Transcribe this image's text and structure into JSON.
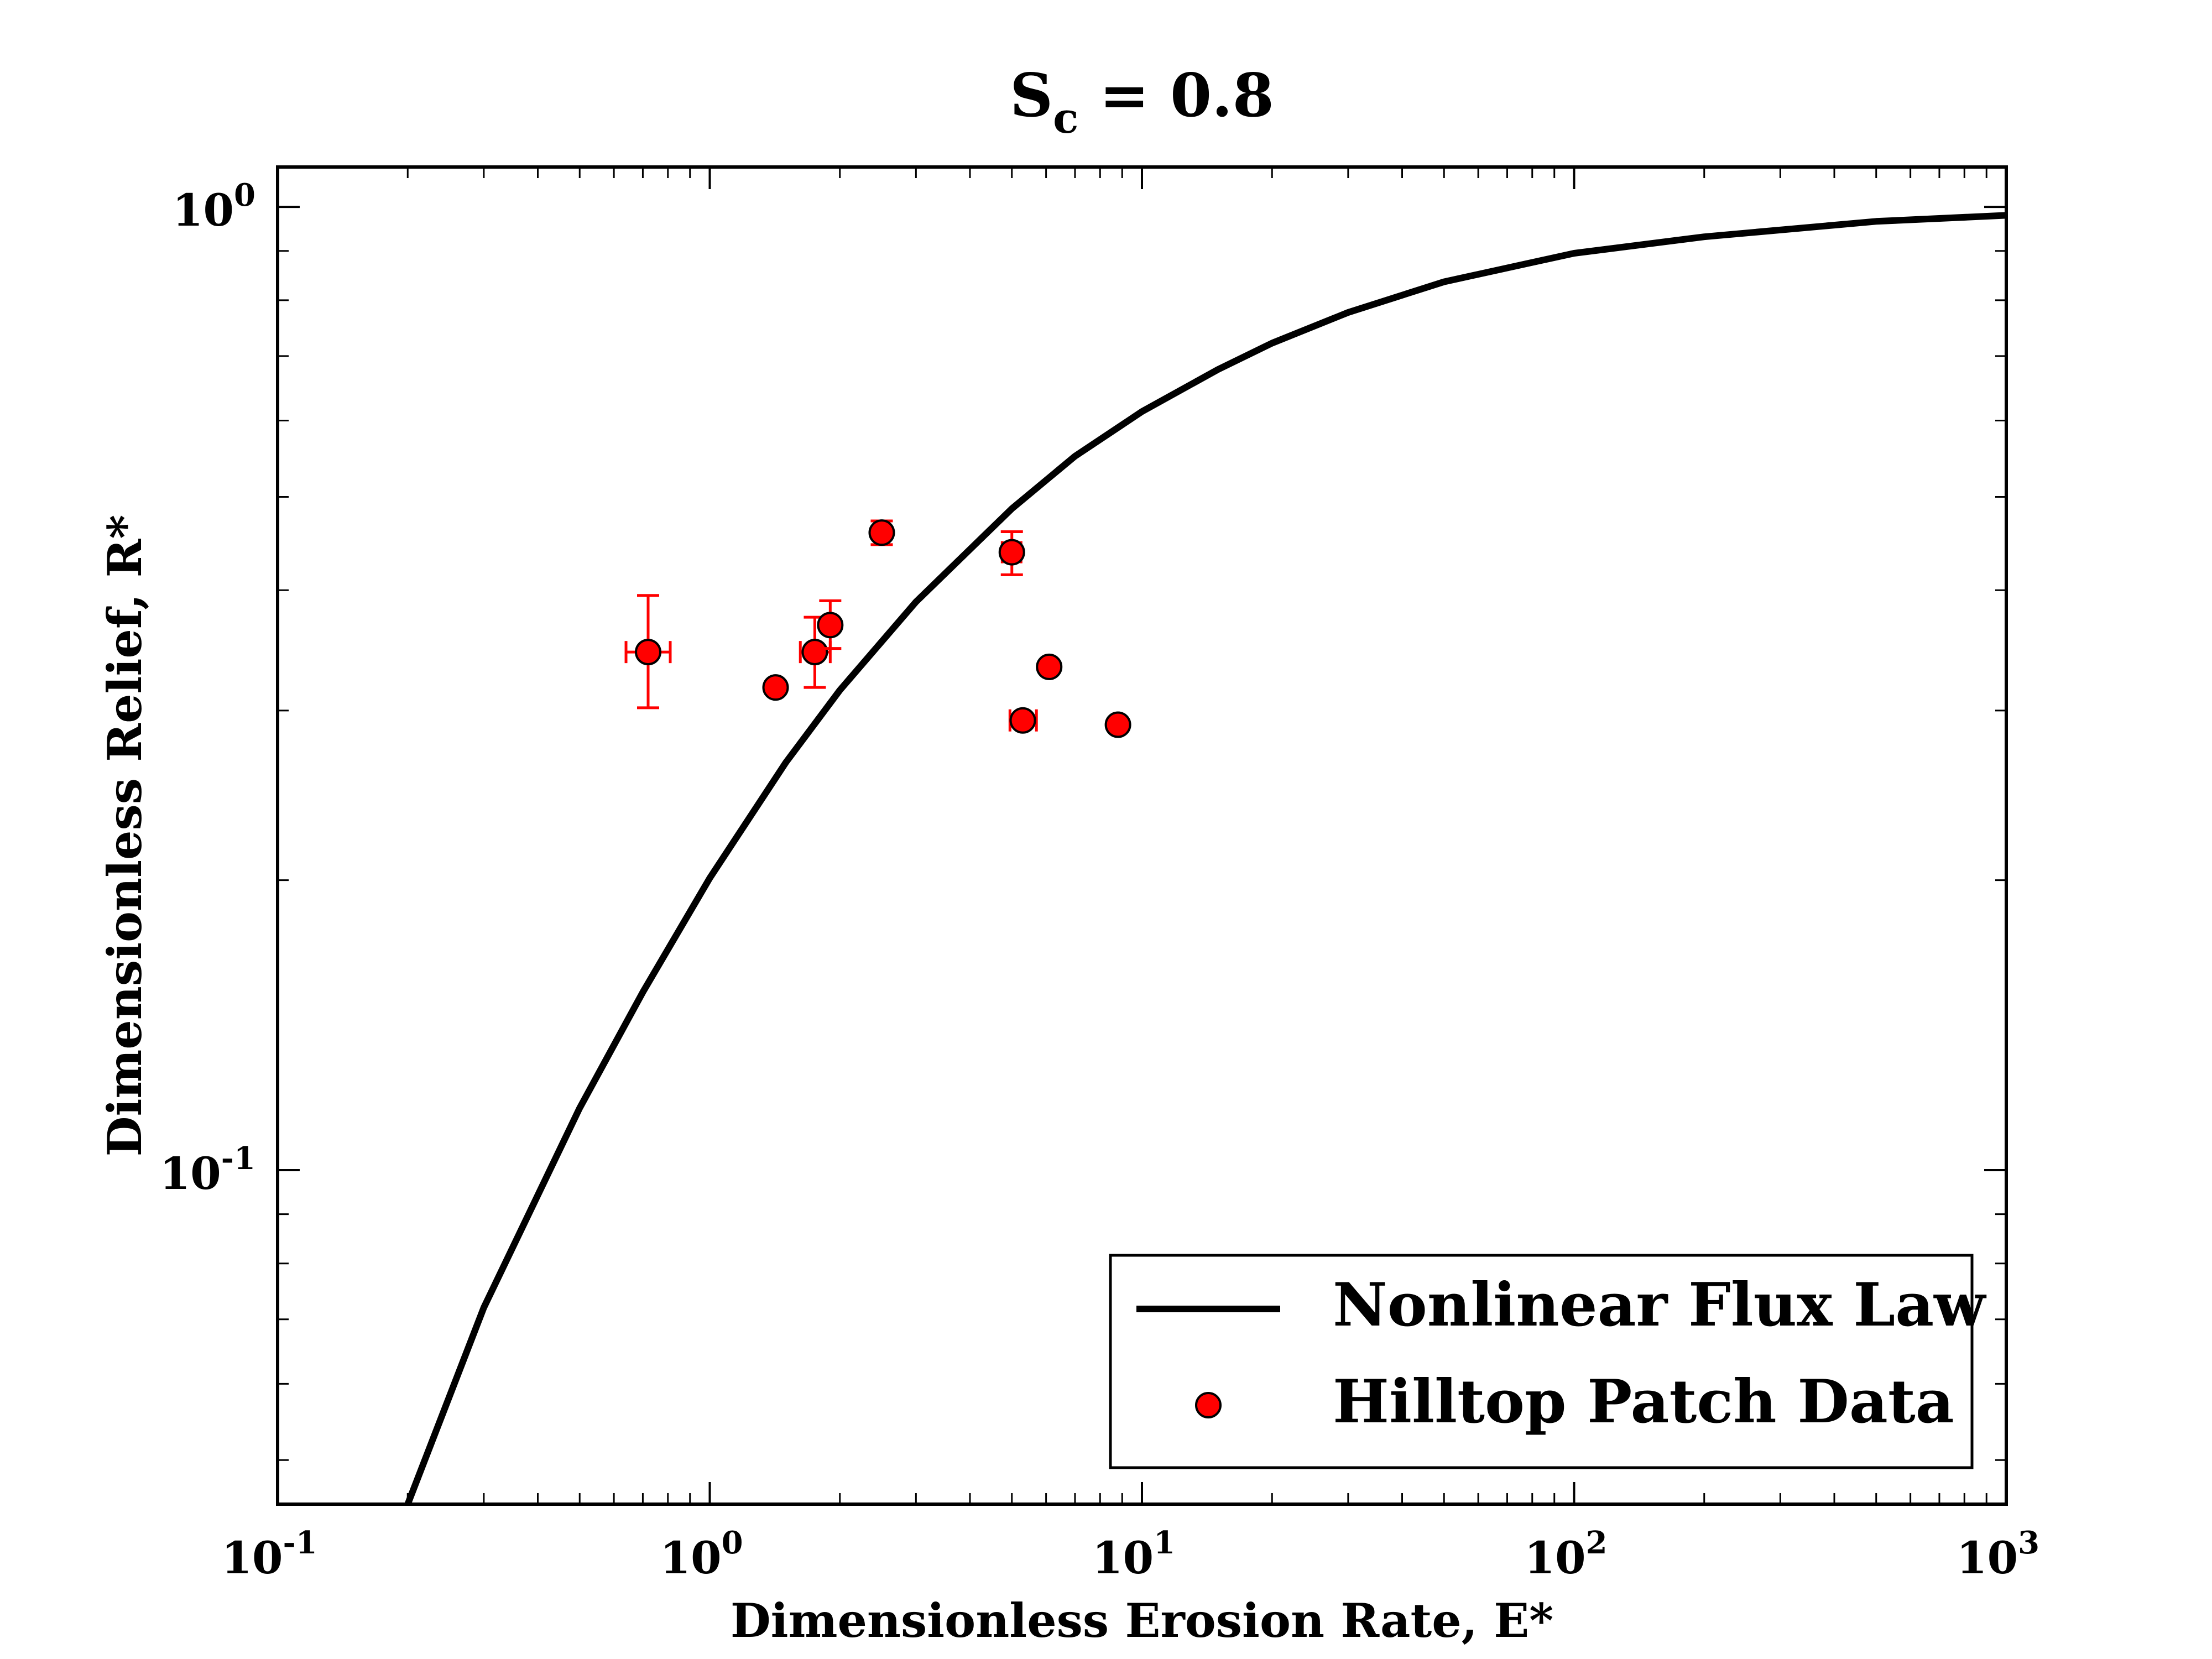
{
  "chart_data": {
    "type": "scatter",
    "title": {
      "main": "S",
      "sub": "c",
      "rest": " = 0.8"
    },
    "xlabel": "Dimensionless Erosion Rate, E*",
    "ylabel": "Dimensionless Relief, R*",
    "xscale": "log",
    "yscale": "log",
    "xlim": [
      0.1,
      1000
    ],
    "ylim": [
      0.045,
      1.1
    ],
    "x_ticks": [
      {
        "value": 0.1,
        "base": "10",
        "exp": "-1"
      },
      {
        "value": 1,
        "base": "10",
        "exp": "0"
      },
      {
        "value": 10,
        "base": "10",
        "exp": "1"
      },
      {
        "value": 100,
        "base": "10",
        "exp": "2"
      },
      {
        "value": 1000,
        "base": "10",
        "exp": "3"
      }
    ],
    "y_ticks": [
      {
        "value": 0.1,
        "base": "10",
        "exp": "-1"
      },
      {
        "value": 1,
        "base": "10",
        "exp": "0"
      }
    ],
    "grid": false,
    "legend_position": "bottom-right",
    "series": [
      {
        "name": "Nonlinear Flux Law",
        "type": "line",
        "color": "#000000",
        "x": [
          0.2,
          0.3,
          0.5,
          0.7,
          1,
          1.5,
          2,
          3,
          5,
          7,
          10,
          15,
          20,
          30,
          50,
          100,
          200,
          500,
          1000
        ],
        "y": [
          0.045,
          0.072,
          0.116,
          0.153,
          0.201,
          0.265,
          0.315,
          0.389,
          0.486,
          0.551,
          0.613,
          0.678,
          0.722,
          0.777,
          0.836,
          0.895,
          0.931,
          0.966,
          0.98
        ]
      },
      {
        "name": "Hilltop Patch Data",
        "type": "scatter",
        "color": "#ff0000",
        "points": [
          {
            "x": 0.72,
            "y": 0.345,
            "y_err": [
              0.302,
              0.395
            ],
            "x_err": [
              0.64,
              0.81
            ]
          },
          {
            "x": 1.42,
            "y": 0.317
          },
          {
            "x": 1.75,
            "y": 0.345,
            "y_err": [
              0.317,
              0.375
            ],
            "x_err": [
              1.62,
              1.9
            ]
          },
          {
            "x": 1.9,
            "y": 0.368,
            "y_err": [
              0.348,
              0.39
            ]
          },
          {
            "x": 2.5,
            "y": 0.459,
            "y_err": [
              0.446,
              0.472
            ]
          },
          {
            "x": 5.0,
            "y": 0.438,
            "y_err": [
              0.415,
              0.46
            ],
            "x_err": [
              4.75,
              5.25
            ]
          },
          {
            "x": 6.1,
            "y": 0.333
          },
          {
            "x": 5.3,
            "y": 0.293,
            "x_err": [
              4.95,
              5.7
            ]
          },
          {
            "x": 8.8,
            "y": 0.29
          }
        ]
      }
    ]
  }
}
